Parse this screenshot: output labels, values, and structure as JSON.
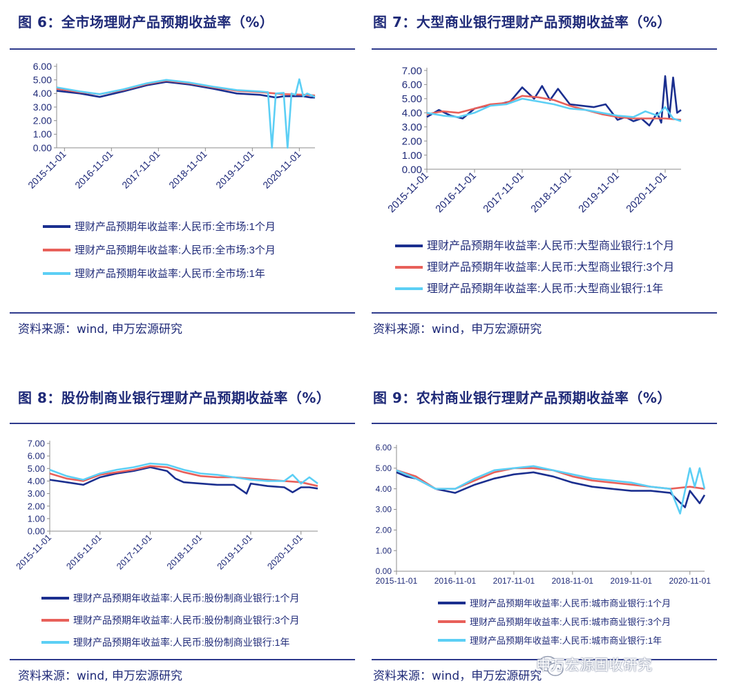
{
  "figures": [
    {
      "title": "图 6：全市场理财产品预期收益率（%）",
      "source": "资料来源：wind, 申万宏源研究",
      "chart_data": {
        "type": "line",
        "x_ticks": [
          "2015-11-01",
          "2016-11-01",
          "2017-11-01",
          "2018-11-01",
          "2019-11-01",
          "2020-11-01"
        ],
        "y_ticks": [
          "0.00",
          "1.00",
          "2.00",
          "3.00",
          "4.00",
          "5.00",
          "6.00"
        ],
        "ylim": [
          0,
          6
        ],
        "x_range": [
          "2015-09",
          "2021-03"
        ],
        "grid": false,
        "legend_position": "bottom",
        "series": [
          {
            "name": "理财产品预期年收益率:人民币:全市场:1个月",
            "color": "#1B2F8F",
            "x": [
              "2015-09",
              "2016-03",
              "2016-08",
              "2017-02",
              "2017-08",
              "2018-01",
              "2018-07",
              "2019-01",
              "2019-07",
              "2020-01",
              "2020-05",
              "2020-06",
              "2020-07",
              "2020-12",
              "2021-01",
              "2021-02",
              "2021-03"
            ],
            "y": [
              4.2,
              4.0,
              3.75,
              4.15,
              4.6,
              4.85,
              4.65,
              4.35,
              4.0,
              3.9,
              3.7,
              3.75,
              3.8,
              3.8,
              3.75,
              3.7,
              3.7
            ]
          },
          {
            "name": "理财产品预期年收益率:人民币:全市场:3个月",
            "color": "#E8605A",
            "x": [
              "2015-09",
              "2016-03",
              "2016-08",
              "2017-02",
              "2017-08",
              "2018-01",
              "2018-07",
              "2019-01",
              "2019-07",
              "2020-01",
              "2020-07",
              "2021-01",
              "2021-03"
            ],
            "y": [
              4.35,
              4.1,
              3.95,
              4.25,
              4.7,
              4.95,
              4.75,
              4.45,
              4.2,
              4.1,
              3.95,
              3.9,
              3.85
            ]
          },
          {
            "name": "理财产品预期年收益率:人民币:全市场:1年",
            "color": "#5CCFF5",
            "x": [
              "2015-09",
              "2016-03",
              "2016-08",
              "2017-02",
              "2017-08",
              "2018-01",
              "2018-07",
              "2019-01",
              "2019-07",
              "2020-01",
              "2020-03",
              "2020-04",
              "2020-05",
              "2020-07",
              "2020-08",
              "2020-09",
              "2020-10",
              "2020-11",
              "2020-12",
              "2021-01",
              "2021-03"
            ],
            "y": [
              4.45,
              4.15,
              3.95,
              4.3,
              4.75,
              5.0,
              4.8,
              4.5,
              4.25,
              4.15,
              4.1,
              0.0,
              4.0,
              4.05,
              0.0,
              4.0,
              3.9,
              5.05,
              3.8,
              4.0,
              3.75
            ]
          }
        ]
      }
    },
    {
      "title": "图 7：大型商业银行理财产品预期收益率（%）",
      "source": "资料来源：wind，申万宏源研究",
      "chart_data": {
        "type": "line",
        "x_ticks": [
          "2015-11-01",
          "2016-11-01",
          "2017-11-01",
          "2018-11-01",
          "2019-11-01",
          "2020-11-01"
        ],
        "y_ticks": [
          "0.00",
          "1.00",
          "2.00",
          "3.00",
          "4.00",
          "5.00",
          "6.00",
          "7.00"
        ],
        "ylim": [
          0,
          7
        ],
        "x_range": [
          "2015-11",
          "2021-03"
        ],
        "grid": false,
        "legend_position": "bottom",
        "series": [
          {
            "name": "理财产品预期年收益率:人民币:大型商业银行:1个月",
            "color": "#1B2F8F",
            "x": [
              "2015-11",
              "2016-02",
              "2016-05",
              "2016-08",
              "2016-11",
              "2017-02",
              "2017-05",
              "2017-08",
              "2017-11",
              "2018-02",
              "2018-04",
              "2018-06",
              "2018-08",
              "2018-11",
              "2019-02",
              "2019-05",
              "2019-08",
              "2019-11",
              "2020-01",
              "2020-03",
              "2020-05",
              "2020-07",
              "2020-09",
              "2020-10",
              "2020-11",
              "2020-12",
              "2021-01",
              "2021-02",
              "2021-03"
            ],
            "y": [
              3.7,
              4.2,
              3.8,
              3.6,
              4.3,
              4.5,
              4.6,
              4.8,
              5.8,
              5.0,
              5.9,
              4.9,
              5.7,
              4.6,
              4.5,
              4.4,
              4.6,
              3.5,
              3.7,
              3.4,
              3.6,
              3.1,
              4.0,
              3.3,
              6.6,
              3.6,
              6.5,
              4.0,
              4.2
            ]
          },
          {
            "name": "理财产品预期年收益率:人民币:大型商业银行:3个月",
            "color": "#E8605A",
            "x": [
              "2015-11",
              "2016-03",
              "2016-07",
              "2016-11",
              "2017-03",
              "2017-07",
              "2017-11",
              "2018-03",
              "2018-07",
              "2018-11",
              "2019-03",
              "2019-07",
              "2019-11",
              "2020-03",
              "2020-07",
              "2020-11",
              "2021-03"
            ],
            "y": [
              3.9,
              4.1,
              4.0,
              4.3,
              4.6,
              4.7,
              5.2,
              5.1,
              4.9,
              4.5,
              4.2,
              3.9,
              3.7,
              3.6,
              3.6,
              3.6,
              3.5
            ]
          },
          {
            "name": "理财产品预期年收益率:人民币:大型商业银行:1年",
            "color": "#5CCFF5",
            "x": [
              "2015-11",
              "2016-03",
              "2016-07",
              "2016-11",
              "2017-03",
              "2017-07",
              "2017-11",
              "2018-03",
              "2018-07",
              "2018-11",
              "2019-03",
              "2019-07",
              "2019-11",
              "2020-03",
              "2020-06",
              "2020-09",
              "2020-11",
              "2021-01",
              "2021-03"
            ],
            "y": [
              4.0,
              3.8,
              3.7,
              4.0,
              4.5,
              4.6,
              5.0,
              4.8,
              4.6,
              4.3,
              4.2,
              4.0,
              3.8,
              3.7,
              4.1,
              3.8,
              4.4,
              3.6,
              3.4
            ]
          }
        ]
      }
    },
    {
      "title": "图 8：股份制商业银行理财产品预期收益率（%）",
      "source": "资料来源：wind, 申万宏源研究",
      "chart_data": {
        "type": "line",
        "x_ticks": [
          "2015-11-01",
          "2016-11-01",
          "2017-11-01",
          "2018-11-01",
          "2019-11-01",
          "2020-11-01"
        ],
        "y_ticks": [
          "0.00",
          "1.00",
          "2.00",
          "3.00",
          "4.00",
          "5.00",
          "6.00",
          "7.00"
        ],
        "ylim": [
          0,
          7
        ],
        "x_range": [
          "2015-11",
          "2021-03"
        ],
        "grid": false,
        "legend_position": "bottom",
        "series": [
          {
            "name": "理财产品预期年收益率:人民币:股份制商业银行:1个月",
            "color": "#1B2F8F",
            "x": [
              "2015-11",
              "2016-03",
              "2016-07",
              "2016-11",
              "2017-03",
              "2017-07",
              "2017-11",
              "2018-03",
              "2018-05",
              "2018-07",
              "2018-11",
              "2019-03",
              "2019-07",
              "2019-10",
              "2019-11",
              "2020-03",
              "2020-07",
              "2020-09",
              "2020-11",
              "2021-01",
              "2021-03"
            ],
            "y": [
              4.1,
              3.9,
              3.7,
              4.3,
              4.6,
              4.8,
              5.1,
              4.8,
              4.2,
              3.9,
              3.8,
              3.7,
              3.7,
              3.0,
              3.8,
              3.6,
              3.5,
              3.1,
              3.5,
              3.5,
              3.4
            ]
          },
          {
            "name": "理财产品预期年收益率:人民币:股份制商业银行:3个月",
            "color": "#E8605A",
            "x": [
              "2015-11",
              "2016-03",
              "2016-07",
              "2016-11",
              "2017-03",
              "2017-07",
              "2017-11",
              "2018-03",
              "2018-07",
              "2018-11",
              "2019-03",
              "2019-07",
              "2019-11",
              "2020-03",
              "2020-07",
              "2020-11",
              "2021-03"
            ],
            "y": [
              4.6,
              4.2,
              4.0,
              4.5,
              4.7,
              4.9,
              5.2,
              5.1,
              4.7,
              4.4,
              4.3,
              4.3,
              4.2,
              4.1,
              4.0,
              3.9,
              3.6
            ]
          },
          {
            "name": "理财产品预期年收益率:人民币:股份制商业银行:1年",
            "color": "#5CCFF5",
            "x": [
              "2015-11",
              "2016-03",
              "2016-07",
              "2016-11",
              "2017-03",
              "2017-07",
              "2017-11",
              "2018-03",
              "2018-07",
              "2018-11",
              "2019-03",
              "2019-07",
              "2019-11",
              "2020-03",
              "2020-07",
              "2020-09",
              "2020-11",
              "2021-01",
              "2021-03"
            ],
            "y": [
              4.9,
              4.4,
              4.1,
              4.6,
              4.9,
              5.1,
              5.4,
              5.3,
              4.9,
              4.6,
              4.5,
              4.3,
              4.1,
              4.0,
              4.0,
              4.5,
              3.8,
              4.3,
              3.8
            ]
          }
        ]
      }
    },
    {
      "title": "图 9：农村商业银行理财产品预期收益率（%）",
      "source": "资料来源：wind，申万宏源研究",
      "chart_data": {
        "type": "line",
        "x_ticks": [
          "2015-11-01",
          "2016-11-01",
          "2017-11-01",
          "2018-11-01",
          "2019-11-01",
          "2020-11-01"
        ],
        "y_ticks": [
          "0.00",
          "1.00",
          "2.00",
          "3.00",
          "4.00",
          "5.00",
          "6.00"
        ],
        "ylim": [
          0,
          6
        ],
        "x_range": [
          "2015-11",
          "2021-02"
        ],
        "grid": false,
        "legend_position": "bottom",
        "series": [
          {
            "name": "理财产品预期年收益率:人民币:城市商业银行:1个月",
            "color": "#1B2F8F",
            "x": [
              "2015-11",
              "2016-01",
              "2016-03",
              "2016-07",
              "2016-11",
              "2017-03",
              "2017-07",
              "2017-11",
              "2018-03",
              "2018-07",
              "2018-11",
              "2019-03",
              "2019-07",
              "2019-11",
              "2020-03",
              "2020-07",
              "2020-10",
              "2020-11",
              "2020-12",
              "2021-01",
              "2021-02"
            ],
            "y": [
              4.8,
              4.6,
              4.5,
              4.0,
              3.8,
              4.2,
              4.5,
              4.7,
              4.8,
              4.6,
              4.3,
              4.1,
              4.0,
              3.9,
              3.9,
              3.8,
              3.1,
              3.9,
              3.6,
              3.3,
              3.7
            ]
          },
          {
            "name": "理财产品预期年收益率:人民币:城市商业银行:3个月",
            "color": "#E8605A",
            "x": [
              "2015-11",
              "2016-03",
              "2016-07",
              "2016-11",
              "2017-03",
              "2017-07",
              "2017-11",
              "2018-03",
              "2018-07",
              "2018-11",
              "2019-03",
              "2019-07",
              "2019-11",
              "2020-03",
              "2020-07",
              "2020-11",
              "2021-02"
            ],
            "y": [
              4.9,
              4.6,
              4.0,
              4.0,
              4.4,
              4.8,
              5.0,
              5.0,
              4.9,
              4.6,
              4.4,
              4.3,
              4.2,
              4.1,
              4.0,
              4.1,
              4.0
            ]
          },
          {
            "name": "理财产品预期年收益率:人民币:城市商业银行:1年",
            "color": "#5CCFF5",
            "x": [
              "2015-11",
              "2016-03",
              "2016-07",
              "2016-11",
              "2017-03",
              "2017-07",
              "2017-11",
              "2018-03",
              "2018-07",
              "2018-11",
              "2019-03",
              "2019-07",
              "2019-11",
              "2020-03",
              "2020-07",
              "2020-09",
              "2020-10",
              "2020-11",
              "2020-12",
              "2021-01",
              "2021-02"
            ],
            "y": [
              4.9,
              4.5,
              4.0,
              4.0,
              4.5,
              4.9,
              5.0,
              5.1,
              4.9,
              4.7,
              4.5,
              4.4,
              4.3,
              4.1,
              4.0,
              2.8,
              3.9,
              5.0,
              4.1,
              5.0,
              4.0
            ]
          }
        ]
      }
    }
  ],
  "watermark": "申万宏源固收研究",
  "watermark_icon": "wechat-icon"
}
